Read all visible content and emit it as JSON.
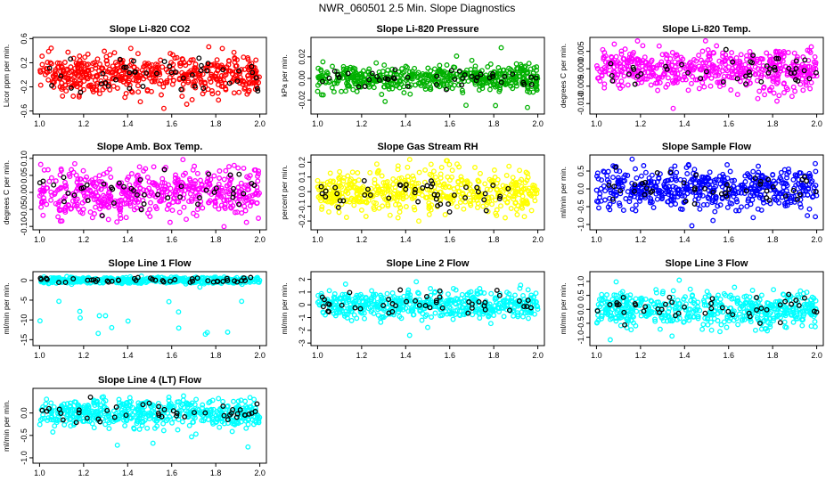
{
  "chart_data": {
    "title": "NWR_060501  2.5 Min. Slope Diagnostics",
    "type": "scatter",
    "x_ticks": [
      "1.0",
      "1.2",
      "1.4",
      "1.6",
      "1.8",
      "2.0"
    ],
    "xlim": [
      0.97,
      2.03
    ],
    "panels": [
      {
        "title": "Slope Li-820 CO2",
        "ylabel": "Licor ppm per min.",
        "color": "#ff0000",
        "ylim": [
          -0.65,
          0.62
        ],
        "y_ticks": [
          -0.6,
          -0.2,
          0.2,
          0.6
        ],
        "y_tick_labels": [
          "-0.6",
          "-0.2",
          "0.2",
          "0.6"
        ],
        "spread": 0.16,
        "outlier_range": [
          -0.6,
          0.55
        ]
      },
      {
        "title": "Slope Li-820 Pressure",
        "ylabel": "kPa per min.",
        "color": "#00b000",
        "ylim": [
          -0.033,
          0.038
        ],
        "y_ticks": [
          -0.02,
          0.0,
          0.02
        ],
        "y_tick_labels": [
          "-0.02",
          "0.00",
          "0.02"
        ],
        "spread": 0.006,
        "outlier_range": [
          -0.03,
          0.03
        ]
      },
      {
        "title": "Slope Li-820 Temp.",
        "ylabel": "degrees C per min.",
        "color": "#ff00ff",
        "ylim": [
          -0.013,
          0.009
        ],
        "y_ticks": [
          -0.01,
          -0.005,
          0.0,
          0.005
        ],
        "y_tick_labels": [
          "-0.010",
          "-0.005",
          "0.000",
          "0.005"
        ],
        "spread": 0.003,
        "outlier_range": [
          -0.012,
          0.008
        ]
      },
      {
        "title": "Slope Amb. Box Temp.",
        "ylabel": "degrees C per min.",
        "color": "#ff00ff",
        "ylim": [
          -0.11,
          0.11
        ],
        "y_ticks": [
          -0.1,
          -0.05,
          0.0,
          0.05,
          0.1
        ],
        "y_tick_labels": [
          "-0.10",
          "-0.05",
          "0.00",
          "0.05",
          "0.10"
        ],
        "spread": 0.035,
        "outlier_range": [
          -0.1,
          0.1
        ]
      },
      {
        "title": "Slope Gas Stream RH",
        "ylabel": "percent per min.",
        "color": "#ffff00",
        "ylim": [
          -0.26,
          0.25
        ],
        "y_ticks": [
          -0.2,
          -0.1,
          0.0,
          0.1,
          0.2
        ],
        "y_tick_labels": [
          "-0.2",
          "-0.1",
          "0.0",
          "0.1",
          "0.2"
        ],
        "spread": 0.07,
        "outlier_range": [
          -0.25,
          0.23
        ]
      },
      {
        "title": "Slope Sample Flow",
        "ylabel": "ml/min per min.",
        "color": "#0000ff",
        "ylim": [
          -1.15,
          0.95
        ],
        "y_ticks": [
          -1.0,
          -0.5,
          0.0,
          0.5
        ],
        "y_tick_labels": [
          "-1.0",
          "-0.5",
          "0.0",
          "0.5"
        ],
        "spread": 0.28,
        "outlier_range": [
          -1.1,
          0.9
        ]
      },
      {
        "title": "Slope Line 1 Flow",
        "ylabel": "ml/min per min.",
        "color": "#00ffff",
        "ylim": [
          -16.5,
          2.2
        ],
        "y_ticks": [
          -15,
          -10,
          -5,
          0
        ],
        "y_tick_labels": [
          "-15",
          "-10",
          "-5",
          "0"
        ],
        "spread": 0.4,
        "outlier_range": [
          -15.5,
          -1
        ]
      },
      {
        "title": "Slope Line 2 Flow",
        "ylabel": "ml/min per min.",
        "color": "#00ffff",
        "ylim": [
          -3.2,
          2.6
        ],
        "y_ticks": [
          -3,
          -2,
          -1,
          0,
          1,
          2
        ],
        "y_tick_labels": [
          "-3",
          "-2",
          "-1",
          "0",
          "1",
          "2"
        ],
        "spread": 0.55,
        "outlier_range": [
          -3,
          2.3
        ]
      },
      {
        "title": "Slope Line 3 Flow",
        "ylabel": "ml/min per min.",
        "color": "#00ffff",
        "ylim": [
          -1.3,
          1.35
        ],
        "y_ticks": [
          -1.0,
          -0.5,
          0.0,
          0.5,
          1.0
        ],
        "y_tick_labels": [
          "-1.0",
          "-0.5",
          "0.0",
          "0.5",
          "1.0"
        ],
        "spread": 0.3,
        "outlier_range": [
          -1.2,
          1.2
        ]
      },
      {
        "title": "Slope Line 4 (LT) Flow",
        "ylabel": "ml/min per min.",
        "color": "#00ffff",
        "ylim": [
          -1.12,
          0.55
        ],
        "y_ticks": [
          -1.0,
          -0.5,
          0.0
        ],
        "y_tick_labels": [
          "-1.0",
          "-0.5",
          "0.0"
        ],
        "spread": 0.15,
        "outlier_range": [
          -1.1,
          0.45
        ]
      }
    ]
  }
}
